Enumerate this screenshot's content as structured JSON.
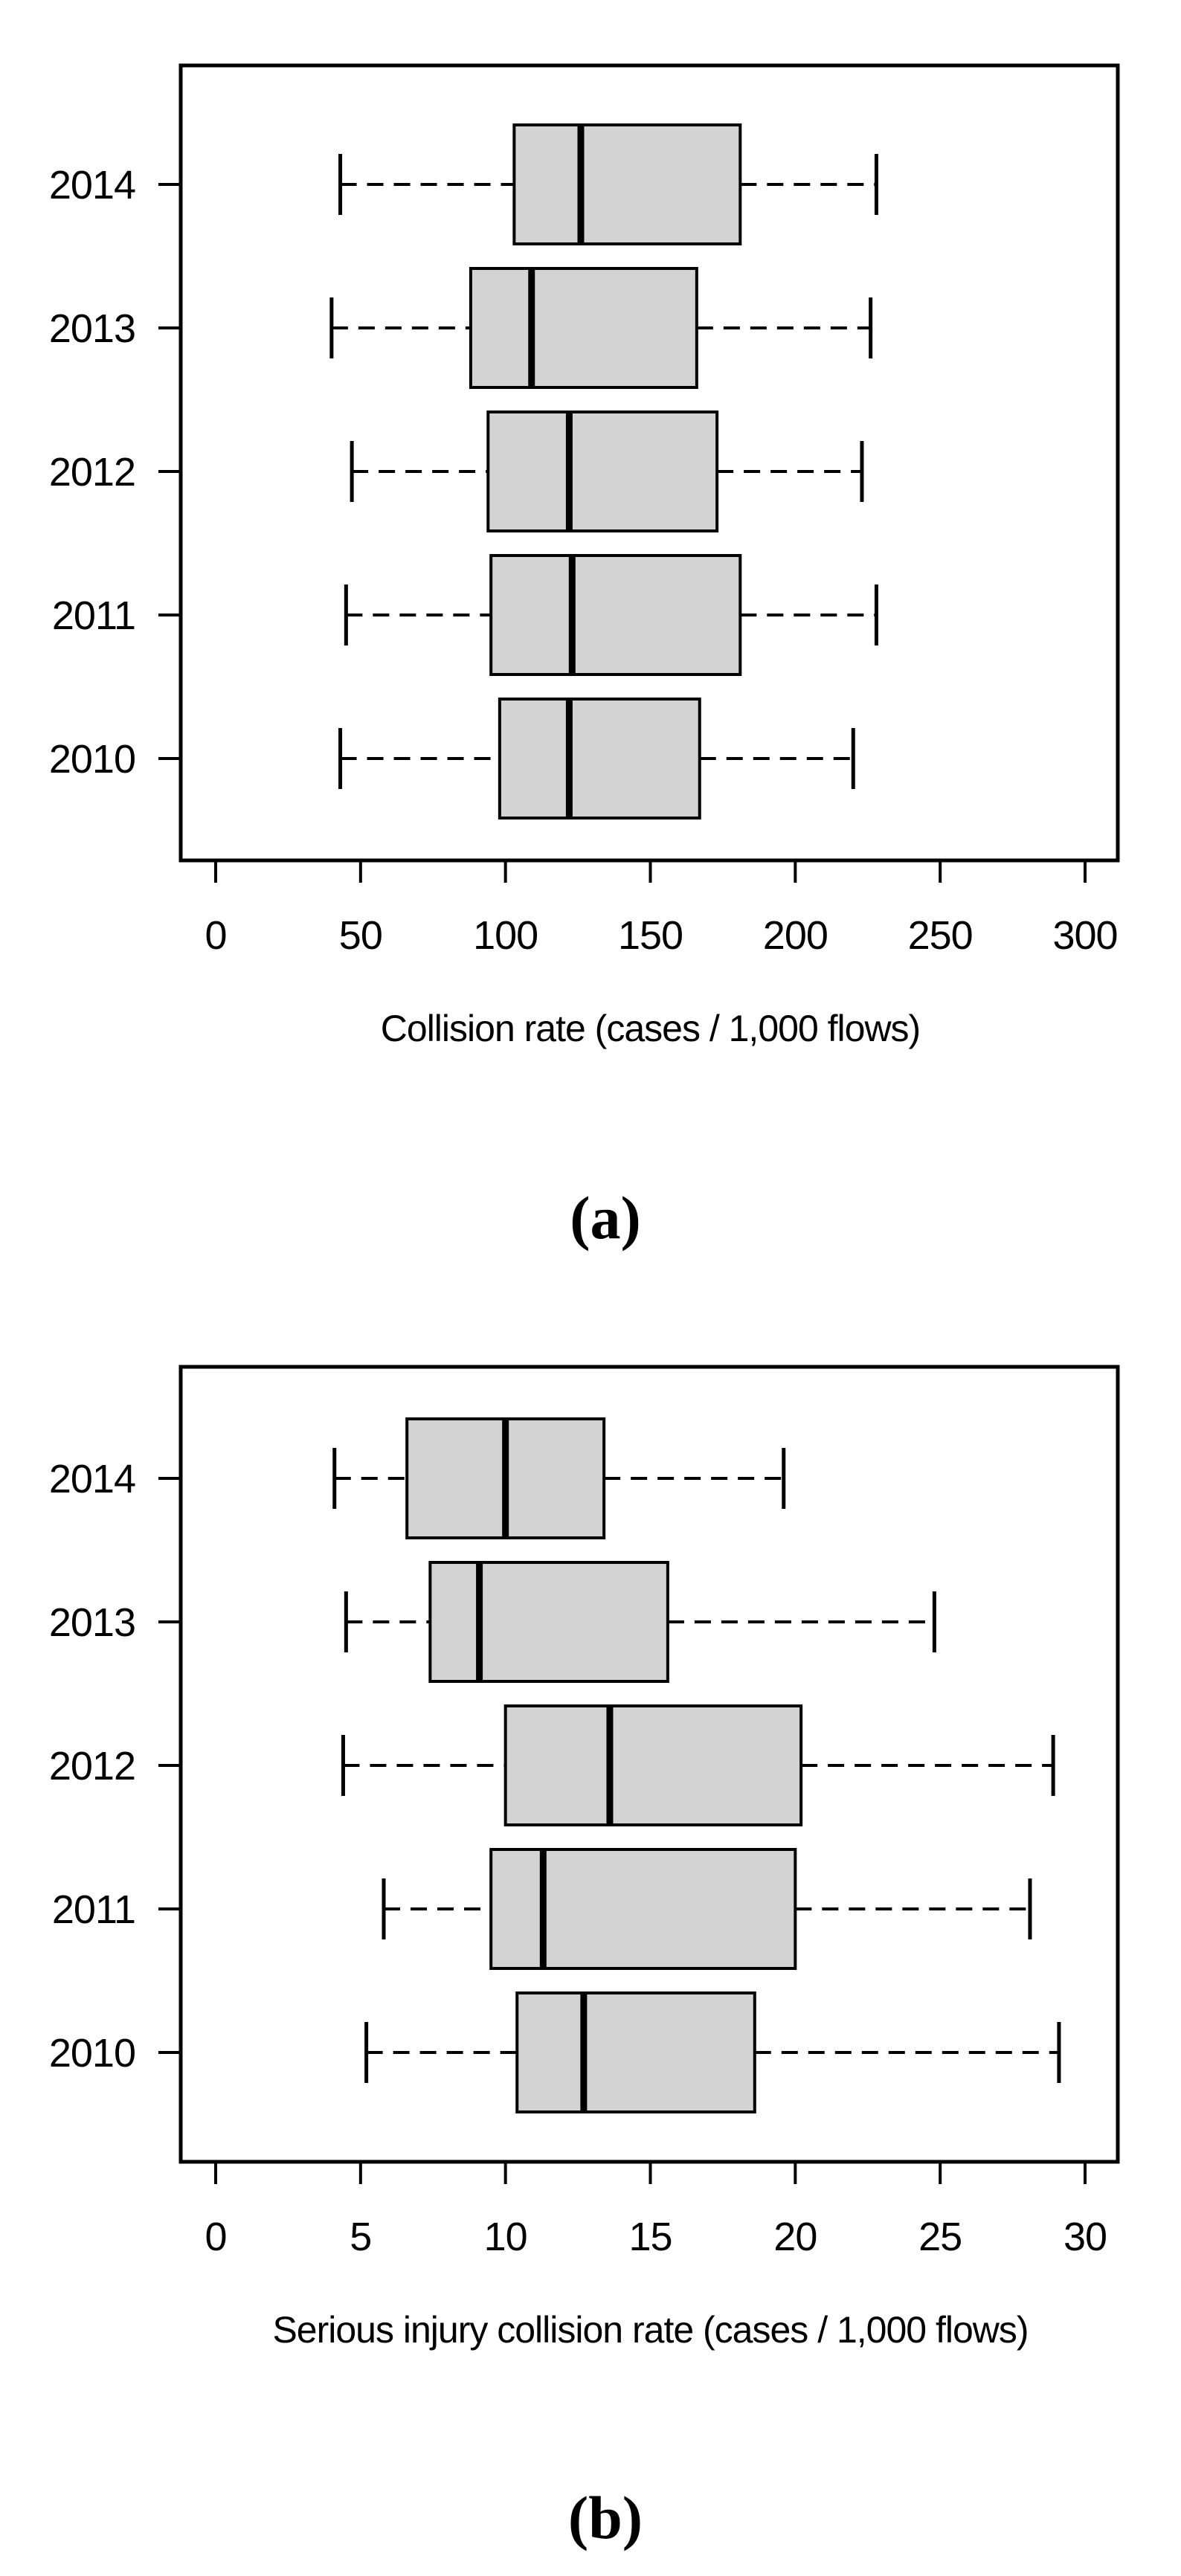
{
  "figure": {
    "background": "#ffffff",
    "text_color": "#000000",
    "box_fill": "#d3d3d3",
    "box_stroke": "#000000"
  },
  "captions": {
    "panel_a": "(a)",
    "panel_b": "(b)"
  },
  "chart_data": [
    {
      "id": "a",
      "type": "boxplot",
      "orientation": "horizontal",
      "xlabel": "Collision rate (cases / 1,000 flows)",
      "xlim": [
        0,
        310
      ],
      "xticks": [
        0,
        50,
        100,
        150,
        200,
        250,
        300
      ],
      "grid": false,
      "categories": [
        "2014",
        "2013",
        "2012",
        "2011",
        "2010"
      ],
      "series": [
        {
          "year": "2014",
          "whisker_low": 43,
          "q1": 103,
          "median": 126,
          "q3": 181,
          "whisker_high": 228
        },
        {
          "year": "2013",
          "whisker_low": 40,
          "q1": 88,
          "median": 109,
          "q3": 166,
          "whisker_high": 226
        },
        {
          "year": "2012",
          "whisker_low": 47,
          "q1": 94,
          "median": 122,
          "q3": 173,
          "whisker_high": 223
        },
        {
          "year": "2011",
          "whisker_low": 45,
          "q1": 95,
          "median": 123,
          "q3": 181,
          "whisker_high": 228
        },
        {
          "year": "2010",
          "whisker_low": 43,
          "q1": 98,
          "median": 122,
          "q3": 167,
          "whisker_high": 220
        }
      ]
    },
    {
      "id": "b",
      "type": "boxplot",
      "orientation": "horizontal",
      "xlabel": "Serious injury collision rate (cases / 1,000 flows)",
      "xlim": [
        0,
        31
      ],
      "xticks": [
        0,
        5,
        10,
        15,
        20,
        25,
        30
      ],
      "grid": false,
      "categories": [
        "2014",
        "2013",
        "2012",
        "2011",
        "2010"
      ],
      "series": [
        {
          "year": "2014",
          "whisker_low": 4.1,
          "q1": 6.6,
          "median": 10.0,
          "q3": 13.4,
          "whisker_high": 19.6
        },
        {
          "year": "2013",
          "whisker_low": 4.5,
          "q1": 7.4,
          "median": 9.1,
          "q3": 15.6,
          "whisker_high": 24.8
        },
        {
          "year": "2012",
          "whisker_low": 4.4,
          "q1": 10.0,
          "median": 13.6,
          "q3": 20.2,
          "whisker_high": 28.9
        },
        {
          "year": "2011",
          "whisker_low": 5.8,
          "q1": 9.5,
          "median": 11.3,
          "q3": 20.0,
          "whisker_high": 28.1
        },
        {
          "year": "2010",
          "whisker_low": 5.2,
          "q1": 10.4,
          "median": 12.7,
          "q3": 18.6,
          "whisker_high": 29.1
        }
      ]
    }
  ]
}
